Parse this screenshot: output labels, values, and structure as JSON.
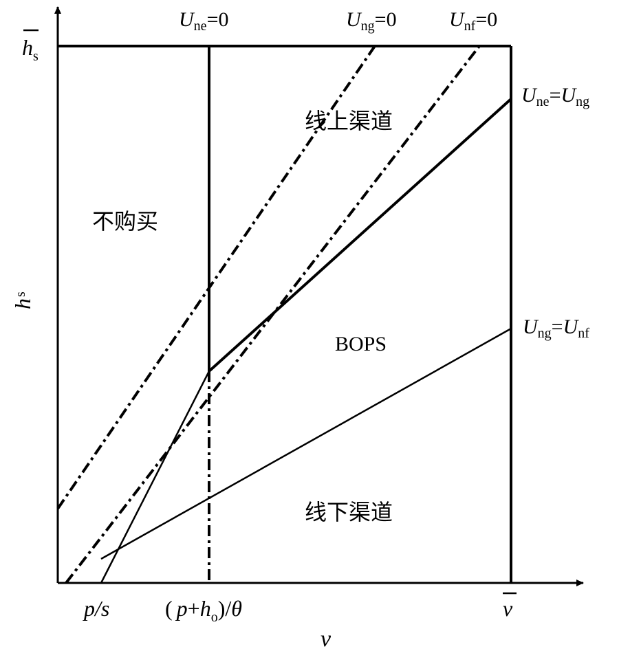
{
  "axes": {
    "x_label": "v",
    "y_label_main": "h",
    "y_label_sub": "s",
    "x_tick_ps": "p/s",
    "x_tick_mid_open": "(",
    "x_tick_mid_p": "p",
    "x_tick_mid_plus": "+",
    "x_tick_mid_h": "h",
    "x_tick_mid_sub": "o",
    "x_tick_mid_close": ")/",
    "x_tick_mid_theta": "θ",
    "x_tick_vbar": "v",
    "y_tick_hbar_main": "h",
    "y_tick_hbar_sub": "s"
  },
  "curves": {
    "une0": {
      "u": "U",
      "sub": "ne",
      "rest": "=0"
    },
    "ung0": {
      "u": "U",
      "sub": "ng",
      "rest": "=0"
    },
    "unf0": {
      "u": "U",
      "sub": "nf",
      "rest": "=0"
    },
    "une_ung": {
      "u1": "U",
      "sub1": "ne",
      "eq": "=",
      "u2": "U",
      "sub2": "ng"
    },
    "ung_unf": {
      "u1": "U",
      "sub1": "ng",
      "eq": "=",
      "u2": "U",
      "sub2": "nf"
    }
  },
  "regions": {
    "online": "线上渠道",
    "no_purchase": "不购买",
    "bops": "BOPS",
    "offline": "线下渠道"
  }
}
